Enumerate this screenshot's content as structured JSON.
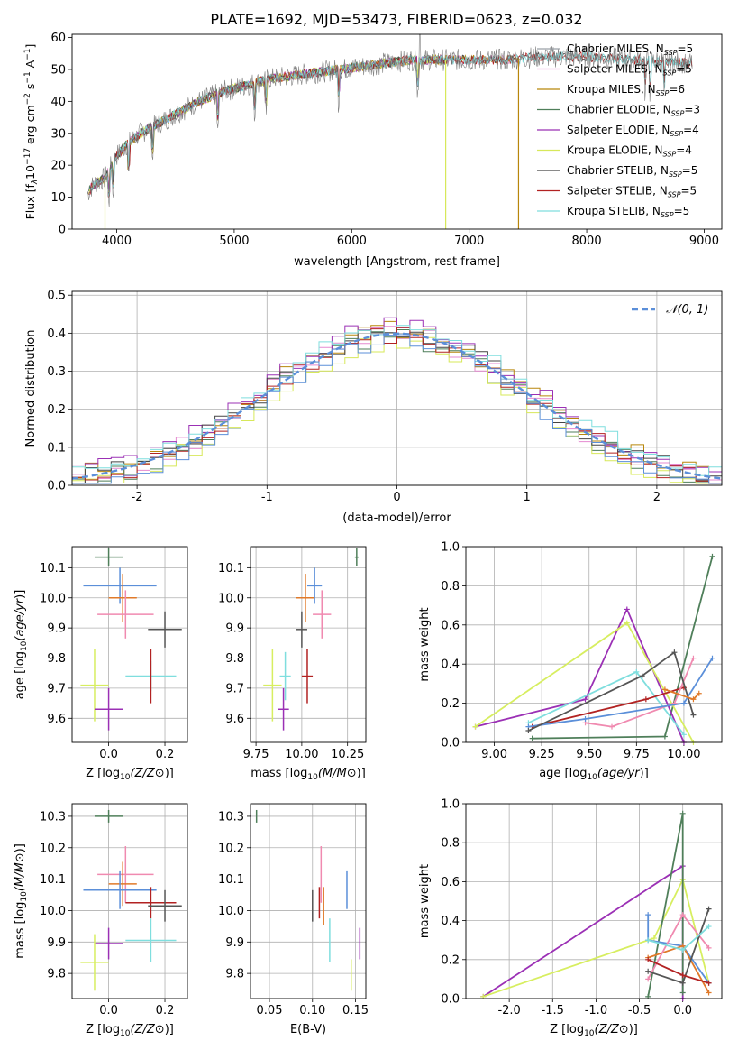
{
  "title": "PLATE=1692, MJD=53473, FIBERID=0623, z=0.032",
  "colors": {
    "Chabrier MILES": "#9aa0a6",
    "Salpeter MILES": "#e58ad0",
    "Kroupa MILES": "#b8860b",
    "Chabrier ELODIE": "#4f7f5a",
    "Salpeter ELODIE": "#9b30b5",
    "Kroupa ELODIE": "#d7e85a",
    "Chabrier STELIB": "#444444",
    "Salpeter STELIB": "#b22222",
    "Kroupa STELIB": "#7fdede",
    "blue": "#5b8fd9",
    "orange": "#e07a2a",
    "pink": "#f08ab0",
    "green": "#4f7f5a",
    "purple": "#9b30b5",
    "yellow": "#d7ee60",
    "dark": "#555555",
    "red": "#b22222",
    "cyan": "#7fdede",
    "dashed": "#5b8fd9"
  },
  "chart_data": [
    {
      "id": "spectrum",
      "type": "line",
      "title": "PLATE=1692, MJD=53473, FIBERID=0623, z=0.032",
      "xlabel": "wavelength [Angstrom, rest frame]",
      "ylabel": "Flux [f_λ10^{-17} erg cm^{-2} s^{-1} A^{-1}]",
      "xlim": [
        3620,
        9150
      ],
      "ylim": [
        0,
        61
      ],
      "xticks": [
        4000,
        5000,
        6000,
        7000,
        8000,
        9000
      ],
      "yticks": [
        0,
        10,
        20,
        30,
        40,
        50,
        60
      ],
      "grid": false,
      "legend_position": "top-right",
      "continuum": [
        [
          3750,
          11
        ],
        [
          3800,
          14
        ],
        [
          3900,
          16
        ],
        [
          4000,
          23
        ],
        [
          4100,
          27
        ],
        [
          4200,
          30
        ],
        [
          4300,
          32
        ],
        [
          4400,
          34
        ],
        [
          4500,
          36
        ],
        [
          4700,
          40
        ],
        [
          4900,
          43
        ],
        [
          5100,
          45
        ],
        [
          5300,
          47
        ],
        [
          5500,
          48
        ],
        [
          5700,
          49
        ],
        [
          5900,
          50
        ],
        [
          6100,
          51
        ],
        [
          6300,
          52
        ],
        [
          6500,
          53
        ],
        [
          6700,
          53
        ],
        [
          6900,
          53
        ],
        [
          7100,
          53
        ],
        [
          7300,
          53
        ],
        [
          7600,
          54
        ],
        [
          8000,
          54
        ],
        [
          8400,
          53
        ],
        [
          8900,
          52
        ]
      ],
      "dropouts": [
        {
          "series": "Kroupa ELODIE",
          "x": 3900
        },
        {
          "series": "Kroupa ELODIE",
          "x": 6800
        },
        {
          "series": "Kroupa MILES",
          "x": 7420
        }
      ],
      "series": [
        {
          "name": "Chabrier MILES",
          "nssp": "5",
          "x_end": 7420
        },
        {
          "name": "Salpeter MILES",
          "nssp": "5",
          "x_end": 7420
        },
        {
          "name": "Kroupa MILES",
          "nssp": "6",
          "x_end": 7420
        },
        {
          "name": "Chabrier ELODIE",
          "nssp": "3",
          "x_end": 6800
        },
        {
          "name": "Salpeter ELODIE",
          "nssp": "4",
          "x_end": 6800
        },
        {
          "name": "Kroupa ELODIE",
          "nssp": "4",
          "x_end": 6800
        },
        {
          "name": "Chabrier STELIB",
          "nssp": "5",
          "x_end": 8900
        },
        {
          "name": "Salpeter STELIB",
          "nssp": "5",
          "x_end": 8900
        },
        {
          "name": "Kroupa STELIB",
          "nssp": "5",
          "x_end": 8900
        }
      ]
    },
    {
      "id": "residuals",
      "type": "line",
      "xlabel": "(data-model)/error",
      "ylabel": "Normed distribution",
      "xlim": [
        -2.5,
        2.5
      ],
      "ylim": [
        0,
        0.51
      ],
      "xticks": [
        -2,
        -1,
        0,
        1,
        2
      ],
      "yticks": [
        0.0,
        0.1,
        0.2,
        0.3,
        0.4,
        0.5
      ],
      "grid": true,
      "legend_position": "top-right",
      "reference": {
        "name": "𝒩(0, 1)",
        "style": "dashed",
        "color": "#5b8fd9"
      },
      "bin_width": 0.1,
      "series": [
        {
          "color": "#e58ad0",
          "offset": 0.0
        },
        {
          "color": "#b8860b",
          "offset": 0.01
        },
        {
          "color": "#4f7f5a",
          "offset": -0.01
        },
        {
          "color": "#9b30b5",
          "offset": 0.02
        },
        {
          "color": "#d7e85a",
          "offset": -0.02
        },
        {
          "color": "#444444",
          "offset": 0.005
        },
        {
          "color": "#b22222",
          "offset": -0.005
        },
        {
          "color": "#7fdede",
          "offset": 0.015
        },
        {
          "color": "#5b8fd9",
          "offset": -0.015
        }
      ]
    },
    {
      "id": "age_vs_z",
      "type": "scatter",
      "xlabel": "Z [log10(Z/Z⊙)]",
      "ylabel": "age  [log10(age/yr)]",
      "xlim": [
        -0.13,
        0.28
      ],
      "ylim": [
        9.52,
        10.17
      ],
      "xticks": [
        0.0,
        0.2
      ],
      "yticks": [
        9.6,
        9.7,
        9.8,
        9.9,
        10.0,
        10.1
      ],
      "grid": true,
      "points": [
        {
          "x": 0.0,
          "y": 10.135,
          "xerr": 0.05,
          "yerr": 0.03,
          "color": "#4f7f5a"
        },
        {
          "x": 0.04,
          "y": 10.04,
          "xerr": 0.13,
          "yerr": 0.06,
          "color": "#5b8fd9"
        },
        {
          "x": 0.05,
          "y": 10.0,
          "xerr": 0.05,
          "yerr": 0.08,
          "color": "#e07a2a"
        },
        {
          "x": 0.06,
          "y": 9.945,
          "xerr": 0.1,
          "yerr": 0.08,
          "color": "#f08ab0"
        },
        {
          "x": 0.2,
          "y": 9.895,
          "xerr": 0.06,
          "yerr": 0.06,
          "color": "#555555"
        },
        {
          "x": 0.15,
          "y": 9.74,
          "xerr": 0.09,
          "yerr": 0.05,
          "color": "#7fdede"
        },
        {
          "x": 0.15,
          "y": 9.74,
          "xerr": 0.0,
          "yerr": 0.09,
          "color": "#b22222"
        },
        {
          "x": -0.05,
          "y": 9.71,
          "xerr": 0.05,
          "yerr": 0.12,
          "color": "#d7ee60"
        },
        {
          "x": 0.0,
          "y": 9.63,
          "xerr": 0.05,
          "yerr": 0.07,
          "color": "#9b30b5"
        }
      ]
    },
    {
      "id": "age_vs_mass",
      "type": "scatter",
      "xlabel": "mass [log10(M/M⊙)]",
      "ylabel": "",
      "xlim": [
        9.72,
        10.35
      ],
      "ylim": [
        9.52,
        10.17
      ],
      "xticks": [
        9.75,
        10.0,
        10.25
      ],
      "yticks": [
        9.6,
        9.7,
        9.8,
        9.9,
        10.0,
        10.1
      ],
      "grid": true,
      "points": [
        {
          "x": 10.3,
          "y": 10.135,
          "xerr": 0.01,
          "yerr": 0.03,
          "color": "#4f7f5a"
        },
        {
          "x": 10.07,
          "y": 10.04,
          "xerr": 0.04,
          "yerr": 0.06,
          "color": "#5b8fd9"
        },
        {
          "x": 10.02,
          "y": 10.0,
          "xerr": 0.05,
          "yerr": 0.08,
          "color": "#e07a2a"
        },
        {
          "x": 10.11,
          "y": 9.945,
          "xerr": 0.05,
          "yerr": 0.08,
          "color": "#f08ab0"
        },
        {
          "x": 10.0,
          "y": 9.895,
          "xerr": 0.03,
          "yerr": 0.06,
          "color": "#555555"
        },
        {
          "x": 9.91,
          "y": 9.74,
          "xerr": 0.03,
          "yerr": 0.08,
          "color": "#7fdede"
        },
        {
          "x": 10.03,
          "y": 9.74,
          "xerr": 0.03,
          "yerr": 0.09,
          "color": "#b22222"
        },
        {
          "x": 9.84,
          "y": 9.71,
          "xerr": 0.05,
          "yerr": 0.12,
          "color": "#d7ee60"
        },
        {
          "x": 9.9,
          "y": 9.63,
          "xerr": 0.03,
          "yerr": 0.07,
          "color": "#9b30b5"
        }
      ]
    },
    {
      "id": "weight_vs_age",
      "type": "line",
      "xlabel": "age  [log10(age/yr)]",
      "ylabel": "mass weight",
      "xlim": [
        8.85,
        10.2
      ],
      "ylim": [
        0,
        1.0
      ],
      "xticks": [
        9.0,
        9.25,
        9.5,
        9.75,
        10.0
      ],
      "yticks": [
        0.0,
        0.2,
        0.4,
        0.6,
        0.8,
        1.0
      ],
      "grid": true,
      "series": [
        {
          "color": "#4f7f5a",
          "points": [
            [
              9.2,
              0.02
            ],
            [
              9.9,
              0.03
            ],
            [
              10.15,
              0.95
            ]
          ]
        },
        {
          "color": "#9b30b5",
          "points": [
            [
              8.9,
              0.08
            ],
            [
              9.48,
              0.22
            ],
            [
              9.7,
              0.68
            ],
            [
              10.0,
              0.0
            ]
          ]
        },
        {
          "color": "#d7ee60",
          "points": [
            [
              8.9,
              0.08
            ],
            [
              9.7,
              0.61
            ],
            [
              10.05,
              0.0
            ]
          ]
        },
        {
          "color": "#7fdede",
          "points": [
            [
              9.18,
              0.1
            ],
            [
              9.75,
              0.36
            ],
            [
              10.0,
              0.04
            ]
          ]
        },
        {
          "color": "#b22222",
          "points": [
            [
              9.2,
              0.08
            ],
            [
              9.8,
              0.22
            ],
            [
              10.0,
              0.28
            ]
          ]
        },
        {
          "color": "#f08ab0",
          "points": [
            [
              9.48,
              0.1
            ],
            [
              9.62,
              0.08
            ],
            [
              9.95,
              0.2
            ],
            [
              10.05,
              0.43
            ]
          ]
        },
        {
          "color": "#5b8fd9",
          "points": [
            [
              9.18,
              0.08
            ],
            [
              9.48,
              0.12
            ],
            [
              10.0,
              0.2
            ],
            [
              10.15,
              0.43
            ]
          ]
        },
        {
          "color": "#555555",
          "points": [
            [
              9.18,
              0.06
            ],
            [
              9.78,
              0.34
            ],
            [
              9.95,
              0.46
            ],
            [
              10.05,
              0.14
            ]
          ]
        },
        {
          "color": "#e07a2a",
          "points": [
            [
              9.9,
              0.27
            ],
            [
              10.05,
              0.22
            ],
            [
              10.08,
              0.25
            ]
          ]
        }
      ]
    },
    {
      "id": "mass_vs_z",
      "type": "scatter",
      "xlabel": "Z [log10(Z/Z⊙)]",
      "ylabel": "mass [log10(M/M⊙)]",
      "xlim": [
        -0.13,
        0.28
      ],
      "ylim": [
        9.72,
        10.34
      ],
      "xticks": [
        0.0,
        0.2
      ],
      "yticks": [
        9.8,
        9.9,
        10.0,
        10.1,
        10.2,
        10.3
      ],
      "grid": true,
      "points": [
        {
          "x": 0.0,
          "y": 10.3,
          "xerr": 0.05,
          "yerr": 0.02,
          "color": "#4f7f5a"
        },
        {
          "x": 0.06,
          "y": 10.115,
          "xerr": 0.1,
          "yerr": 0.09,
          "color": "#f08ab0"
        },
        {
          "x": 0.05,
          "y": 10.085,
          "xerr": 0.05,
          "yerr": 0.07,
          "color": "#e07a2a"
        },
        {
          "x": 0.04,
          "y": 10.065,
          "xerr": 0.13,
          "yerr": 0.06,
          "color": "#5b8fd9"
        },
        {
          "x": 0.15,
          "y": 10.025,
          "xerr": 0.09,
          "yerr": 0.05,
          "color": "#b22222"
        },
        {
          "x": 0.2,
          "y": 10.015,
          "xerr": 0.06,
          "yerr": 0.05,
          "color": "#555555"
        },
        {
          "x": 0.15,
          "y": 9.905,
          "xerr": 0.09,
          "yerr": 0.07,
          "color": "#7fdede"
        },
        {
          "x": 0.0,
          "y": 9.895,
          "xerr": 0.05,
          "yerr": 0.05,
          "color": "#9b30b5"
        },
        {
          "x": -0.05,
          "y": 9.835,
          "xerr": 0.05,
          "yerr": 0.09,
          "color": "#d7ee60"
        }
      ]
    },
    {
      "id": "mass_vs_ebv",
      "type": "scatter",
      "xlabel": "E(B-V)",
      "ylabel": "",
      "xlim": [
        0.028,
        0.162
      ],
      "ylim": [
        9.72,
        10.34
      ],
      "xticks": [
        0.05,
        0.1,
        0.15
      ],
      "yticks": [
        9.8,
        9.9,
        10.0,
        10.1,
        10.2,
        10.3
      ],
      "grid": true,
      "points": [
        {
          "x": 0.035,
          "y": 10.3,
          "xerr": 0.0,
          "yerr": 0.02,
          "color": "#4f7f5a"
        },
        {
          "x": 0.11,
          "y": 10.115,
          "xerr": 0.0,
          "yerr": 0.09,
          "color": "#f08ab0"
        },
        {
          "x": 0.113,
          "y": 10.015,
          "xerr": 0.0,
          "yerr": 0.06,
          "color": "#e07a2a"
        },
        {
          "x": 0.14,
          "y": 10.065,
          "xerr": 0.0,
          "yerr": 0.06,
          "color": "#5b8fd9"
        },
        {
          "x": 0.108,
          "y": 10.025,
          "xerr": 0.0,
          "yerr": 0.05,
          "color": "#b22222"
        },
        {
          "x": 0.1,
          "y": 10.015,
          "xerr": 0.0,
          "yerr": 0.05,
          "color": "#555555"
        },
        {
          "x": 0.12,
          "y": 9.905,
          "xerr": 0.0,
          "yerr": 0.07,
          "color": "#7fdede"
        },
        {
          "x": 0.155,
          "y": 9.895,
          "xerr": 0.0,
          "yerr": 0.05,
          "color": "#9b30b5"
        },
        {
          "x": 0.145,
          "y": 9.795,
          "xerr": 0.0,
          "yerr": 0.05,
          "color": "#d7ee60"
        }
      ]
    },
    {
      "id": "weight_vs_z",
      "type": "line",
      "xlabel": "Z [log10(Z/Z⊙)]",
      "ylabel": "mass weight",
      "xlim": [
        -2.5,
        0.45
      ],
      "ylim": [
        0,
        1.0
      ],
      "xticks": [
        -2.0,
        -1.5,
        -1.0,
        -0.5,
        0.0
      ],
      "yticks": [
        0.0,
        0.2,
        0.4,
        0.6,
        0.8,
        1.0
      ],
      "grid": true,
      "series": [
        {
          "color": "#9b30b5",
          "points": [
            [
              -2.3,
              0.01
            ],
            [
              0.0,
              0.68
            ],
            [
              0.0,
              0.0
            ]
          ]
        },
        {
          "color": "#d7ee60",
          "points": [
            [
              -2.3,
              0.01
            ],
            [
              -0.33,
              0.31
            ],
            [
              0.0,
              0.61
            ],
            [
              0.3,
              0.08
            ]
          ]
        },
        {
          "color": "#4f7f5a",
          "points": [
            [
              -0.4,
              0.01
            ],
            [
              0.0,
              0.95
            ],
            [
              0.0,
              0.03
            ]
          ]
        },
        {
          "color": "#5b8fd9",
          "points": [
            [
              -0.4,
              0.43
            ],
            [
              -0.4,
              0.3
            ],
            [
              0.0,
              0.27
            ],
            [
              0.3,
              0.08
            ]
          ]
        },
        {
          "color": "#e07a2a",
          "points": [
            [
              -0.4,
              0.21
            ],
            [
              0.0,
              0.27
            ],
            [
              0.3,
              0.03
            ]
          ]
        },
        {
          "color": "#f08ab0",
          "points": [
            [
              -0.4,
              0.1
            ],
            [
              0.0,
              0.43
            ],
            [
              0.3,
              0.26
            ]
          ]
        },
        {
          "color": "#555555",
          "points": [
            [
              -0.4,
              0.14
            ],
            [
              0.0,
              0.08
            ],
            [
              0.3,
              0.46
            ]
          ]
        },
        {
          "color": "#b22222",
          "points": [
            [
              -0.4,
              0.2
            ],
            [
              0.0,
              0.12
            ],
            [
              0.3,
              0.08
            ]
          ]
        },
        {
          "color": "#7fdede",
          "points": [
            [
              -0.4,
              0.3
            ],
            [
              0.0,
              0.25
            ],
            [
              0.3,
              0.37
            ]
          ]
        }
      ]
    }
  ]
}
